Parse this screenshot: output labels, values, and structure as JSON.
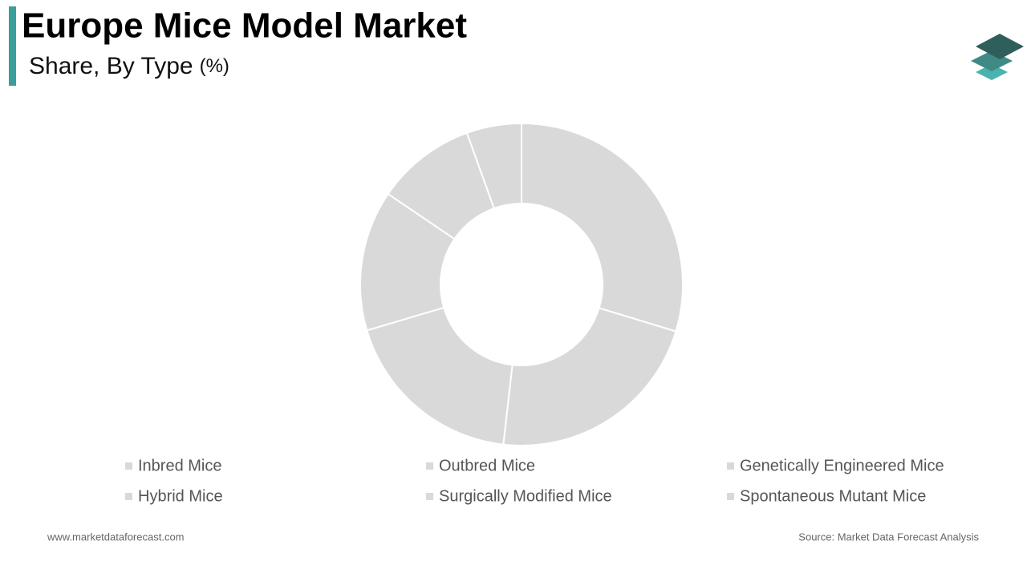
{
  "chart_data": {
    "type": "donut",
    "title": "Europe Mice Model Market",
    "subtitle": "Share, By Type",
    "unit": "(%)",
    "categories": [
      "Inbred Mice",
      "Outbred Mice",
      "Genetically Engineered Mice",
      "Hybrid Mice",
      "Surgically Modified Mice",
      "Spontaneous Mutant Mice"
    ],
    "values": [
      29.7,
      22.1,
      18.6,
      14.1,
      10,
      5.5
    ],
    "color": "#d9d9d9"
  },
  "website": "www.marketdataforecast.com",
  "source": "Source: Market Data Forecast Analysis"
}
